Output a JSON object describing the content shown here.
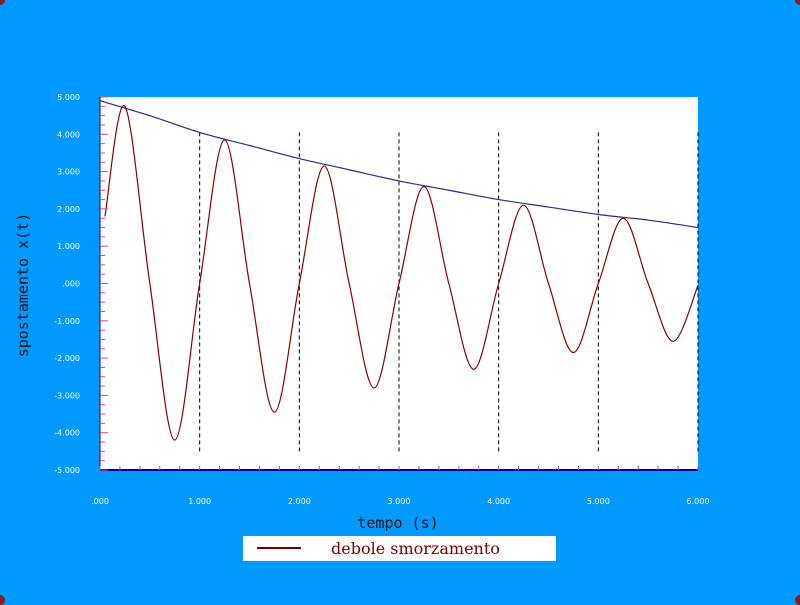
{
  "chart_data": {
    "type": "line",
    "xlabel": "tempo (s)",
    "ylabel": "spostamento x(t)",
    "xlim": [
      0,
      6
    ],
    "ylim": [
      -5,
      5
    ],
    "x_ticks": [
      0,
      1,
      2,
      3,
      4,
      5,
      6
    ],
    "x_tick_labels": [
      ".000",
      "1.000",
      "2.000",
      "3.000",
      "4.000",
      "5.000",
      "6.000"
    ],
    "y_ticks": [
      5,
      4,
      3,
      2,
      1,
      0,
      -1,
      -2,
      -3,
      -4,
      -5
    ],
    "y_tick_labels": [
      "5.000",
      "4.000",
      "3.000",
      "2.000",
      "1.000",
      ".000",
      "-1.000",
      "-2.000",
      "-3.000",
      "-4.000",
      "-5.000"
    ],
    "vertical_dashed_lines_at": [
      1,
      2,
      3,
      4,
      5,
      6
    ],
    "grid": false,
    "legend_position": "bottom-center",
    "series": [
      {
        "name": "debole smorzamento",
        "color": "#8b0000",
        "x": [
          0.05,
          0.25,
          0.5,
          0.75,
          1.0,
          1.25,
          1.5,
          1.75,
          2.0,
          2.25,
          2.5,
          2.75,
          3.0,
          3.25,
          3.5,
          3.75,
          4.0,
          4.25,
          4.5,
          4.75,
          5.0,
          5.25,
          5.5,
          5.75,
          6.0
        ],
        "y": [
          1.8,
          4.75,
          0.0,
          -4.2,
          0.0,
          3.85,
          0.0,
          -3.45,
          0.0,
          3.15,
          0.0,
          -2.8,
          0.0,
          2.6,
          0.0,
          -2.3,
          0.0,
          2.1,
          0.0,
          -1.85,
          0.0,
          1.75,
          0.0,
          -1.55,
          -0.05
        ]
      },
      {
        "name": "",
        "color": "#2a2a8a",
        "x": [
          0,
          0.5,
          1.0,
          1.5,
          2.0,
          2.5,
          3.0,
          3.5,
          4.0,
          4.5,
          5.0,
          5.5,
          6.0
        ],
        "y": [
          4.9,
          4.5,
          4.05,
          3.7,
          3.35,
          3.05,
          2.75,
          2.5,
          2.25,
          2.05,
          1.85,
          1.7,
          1.5
        ]
      }
    ]
  },
  "colors": {
    "background": "#0099ff",
    "plot_area": "#ffffff",
    "axis": "#0000aa",
    "corner_dots": "#8b1a1a"
  }
}
